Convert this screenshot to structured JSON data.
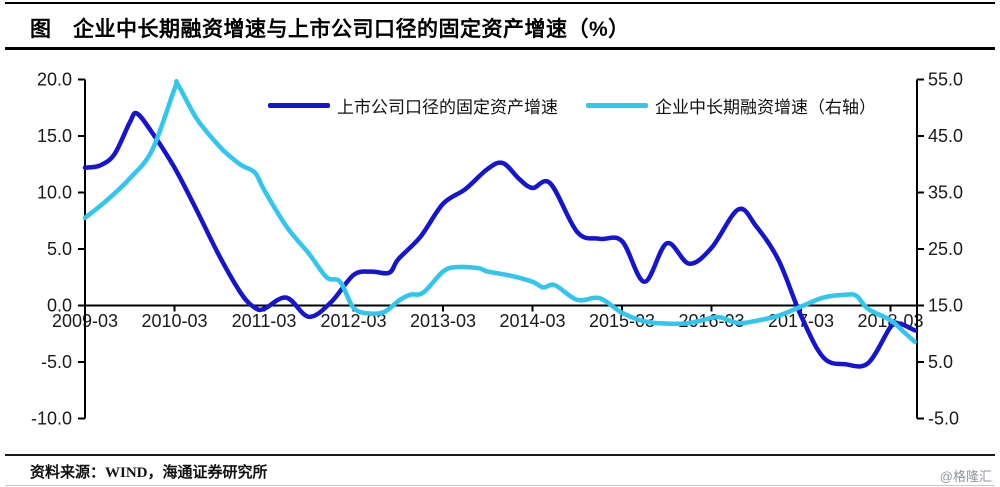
{
  "page": {
    "title": "图　企业中长期融资增速与上市公司口径的固定资产增速（%）",
    "source": "资料来源：WIND，海通证券研究所",
    "watermark": "@格隆汇"
  },
  "colors": {
    "series_fixed_asset": "#1414d2",
    "series_financing": "#2fc6f0",
    "axis": "#000000",
    "tick_label": "#1a1a1a"
  },
  "chart_data": {
    "type": "line",
    "title": "企业中长期融资增速与上市公司口径的固定资产增速（%）",
    "grid": false,
    "legend_position": "top-center",
    "x_unit": "years since 2009-03 (0 = 2009-03, 0.25 = one quarter)",
    "x_axis": {
      "tick_labels": [
        "2009-03",
        "2010-03",
        "2011-03",
        "2012-03",
        "2013-03",
        "2014-03",
        "2015-03",
        "2016-03",
        "2017-03",
        "2018-03"
      ],
      "tick_positions_years": [
        0,
        1,
        2,
        3,
        4,
        5,
        6,
        7,
        8,
        9
      ],
      "data_end_years": 9.27
    },
    "left_axis": {
      "range": [
        -10,
        20
      ],
      "ticks": [
        20.0,
        15.0,
        10.0,
        5.0,
        0.0,
        -5.0,
        -10.0
      ],
      "tick_labels": [
        "20.0",
        "15.0",
        "10.0",
        "5.0",
        "0.0",
        "-5.0",
        "-10.0"
      ]
    },
    "right_axis": {
      "range": [
        -5,
        55
      ],
      "ticks": [
        55.0,
        45.0,
        35.0,
        25.0,
        15.0,
        5.0,
        -5.0
      ],
      "tick_labels": [
        "55.0",
        "45.0",
        "35.0",
        "25.0",
        "15.0",
        "5.0",
        "-5.0"
      ]
    },
    "series": [
      {
        "name": "上市公司口径的固定资产增速",
        "axis": "left",
        "color": "#1414d2",
        "points": [
          [
            0,
            12.2
          ],
          [
            0.17,
            12.4
          ],
          [
            0.33,
            13.4
          ],
          [
            0.5,
            16.2
          ],
          [
            0.58,
            17.0
          ],
          [
            0.75,
            15.3
          ],
          [
            1.0,
            12.2
          ],
          [
            1.25,
            8.4
          ],
          [
            1.5,
            4.4
          ],
          [
            1.75,
            1.0
          ],
          [
            1.9,
            -0.2
          ],
          [
            2.0,
            -0.3
          ],
          [
            2.25,
            0.7
          ],
          [
            2.5,
            -1.0
          ],
          [
            2.75,
            0.3
          ],
          [
            3.0,
            2.7
          ],
          [
            3.2,
            3.0
          ],
          [
            3.4,
            2.9
          ],
          [
            3.5,
            4.1
          ],
          [
            3.75,
            6.1
          ],
          [
            4.0,
            9.0
          ],
          [
            4.25,
            10.3
          ],
          [
            4.5,
            12.1
          ],
          [
            4.67,
            12.6
          ],
          [
            4.85,
            11.2
          ],
          [
            5.0,
            10.4
          ],
          [
            5.2,
            10.8
          ],
          [
            5.5,
            6.5
          ],
          [
            5.75,
            5.9
          ],
          [
            6.0,
            5.7
          ],
          [
            6.25,
            2.1
          ],
          [
            6.5,
            5.5
          ],
          [
            6.75,
            3.7
          ],
          [
            7.0,
            5.1
          ],
          [
            7.3,
            8.5
          ],
          [
            7.5,
            7.0
          ],
          [
            7.75,
            4.0
          ],
          [
            8.0,
            -0.9
          ],
          [
            8.25,
            -4.6
          ],
          [
            8.5,
            -5.2
          ],
          [
            8.75,
            -5.1
          ],
          [
            9.0,
            -1.9
          ],
          [
            9.1,
            -1.6
          ],
          [
            9.27,
            -2.2
          ]
        ]
      },
      {
        "name": "企业中长期融资增速（右轴）",
        "axis": "right",
        "color": "#2fc6f0",
        "points": [
          [
            0,
            30.5
          ],
          [
            0.25,
            33.7
          ],
          [
            0.5,
            37.5
          ],
          [
            0.75,
            42.5
          ],
          [
            1.0,
            53.3
          ],
          [
            1.04,
            54.0
          ],
          [
            1.25,
            48.0
          ],
          [
            1.5,
            43.2
          ],
          [
            1.62,
            41.4
          ],
          [
            1.75,
            39.8
          ],
          [
            1.9,
            38.5
          ],
          [
            2.0,
            35.5
          ],
          [
            2.25,
            29.0
          ],
          [
            2.5,
            24.2
          ],
          [
            2.7,
            20.0
          ],
          [
            2.85,
            19.2
          ],
          [
            3.0,
            14.6
          ],
          [
            3.17,
            13.6
          ],
          [
            3.35,
            13.9
          ],
          [
            3.5,
            15.8
          ],
          [
            3.63,
            16.9
          ],
          [
            3.78,
            17.3
          ],
          [
            4.0,
            21.0
          ],
          [
            4.15,
            21.8
          ],
          [
            4.4,
            21.6
          ],
          [
            4.5,
            21.0
          ],
          [
            4.75,
            20.3
          ],
          [
            5.0,
            19.2
          ],
          [
            5.12,
            18.2
          ],
          [
            5.25,
            18.6
          ],
          [
            5.5,
            16.0
          ],
          [
            5.75,
            16.3
          ],
          [
            6.0,
            13.7
          ],
          [
            6.25,
            12.2
          ],
          [
            6.5,
            11.8
          ],
          [
            6.75,
            11.9
          ],
          [
            7.0,
            12.8
          ],
          [
            7.1,
            12.9
          ],
          [
            7.3,
            11.9
          ],
          [
            7.5,
            12.3
          ],
          [
            7.75,
            13.2
          ],
          [
            8.0,
            14.8
          ],
          [
            8.25,
            16.4
          ],
          [
            8.5,
            16.9
          ],
          [
            8.62,
            16.7
          ],
          [
            8.75,
            14.4
          ],
          [
            9.0,
            12.4
          ],
          [
            9.15,
            10.3
          ],
          [
            9.27,
            8.6
          ]
        ]
      }
    ]
  }
}
